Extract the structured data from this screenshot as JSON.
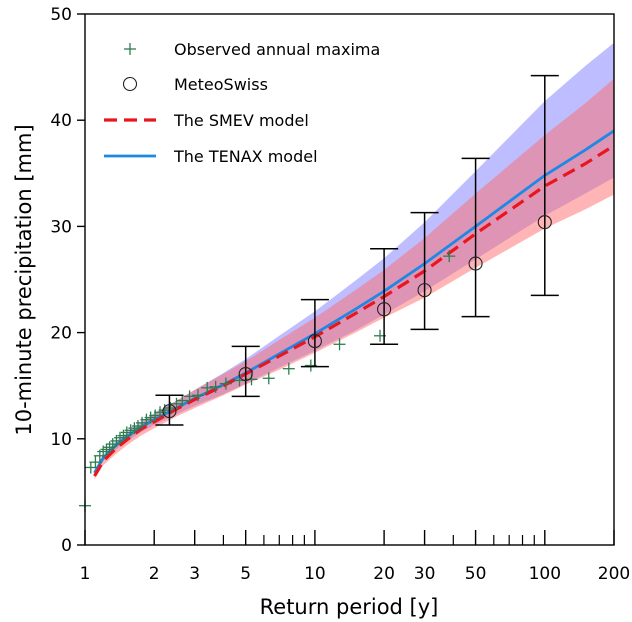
{
  "chart_data": {
    "type": "line",
    "xlabel": "Return period [y]",
    "ylabel": "10-minute precipitation [mm]",
    "xscale": "log",
    "xlim": [
      1,
      200
    ],
    "ylim": [
      0,
      50
    ],
    "grid": false,
    "legend_placement": "top-left",
    "x_ticks": [
      1,
      2,
      3,
      5,
      10,
      20,
      30,
      50,
      100,
      200
    ],
    "y_ticks": [
      0,
      10,
      20,
      30,
      40,
      50
    ],
    "legend": [
      {
        "label": "Observed annual maxima",
        "marker": "plus",
        "color": "#2e7d4f"
      },
      {
        "label": "MeteoSwiss",
        "marker": "circle",
        "color": "#222222"
      },
      {
        "label": "The SMEV model",
        "marker": "dashed-line",
        "color": "#e8161e"
      },
      {
        "label": "The TENAX model",
        "marker": "solid-line",
        "color": "#1e88e5"
      }
    ],
    "series": [
      {
        "name": "Observed annual maxima",
        "style": "plus",
        "color": "#2e7d4f",
        "x": [
          1.0,
          1.06,
          1.11,
          1.16,
          1.2,
          1.24,
          1.28,
          1.32,
          1.37,
          1.42,
          1.47,
          1.52,
          1.58,
          1.64,
          1.7,
          1.77,
          1.85,
          1.93,
          2.02,
          2.12,
          2.22,
          2.35,
          2.5,
          2.65,
          2.85,
          3.1,
          3.4,
          3.7,
          4.1,
          4.7,
          5.3,
          6.3,
          7.7,
          9.6,
          12.8,
          19.2,
          38.4
        ],
        "y": [
          3.7,
          7.3,
          7.8,
          8.4,
          8.8,
          9.0,
          9.2,
          9.5,
          9.8,
          10.1,
          10.3,
          10.6,
          10.8,
          11.0,
          11.2,
          11.5,
          11.8,
          12.0,
          12.2,
          12.5,
          12.7,
          12.9,
          13.3,
          13.6,
          14.0,
          14.1,
          14.8,
          14.9,
          15.2,
          15.5,
          15.6,
          15.7,
          16.6,
          16.9,
          18.9,
          19.7,
          27.2
        ]
      },
      {
        "name": "MeteoSwiss",
        "style": "circle",
        "color": "#222222",
        "x": [
          2.33,
          5,
          10,
          20,
          30,
          50,
          100
        ],
        "y": [
          12.6,
          16.1,
          19.2,
          22.2,
          24.0,
          26.5,
          30.4
        ],
        "y_low": [
          11.3,
          14.0,
          16.8,
          18.9,
          20.3,
          21.5,
          23.5
        ],
        "y_high": [
          14.1,
          18.7,
          23.1,
          27.9,
          31.3,
          36.4,
          44.2
        ]
      },
      {
        "name": "The SMEV model",
        "style": "dashed",
        "color": "#e8161e",
        "x": [
          1.1,
          1.2,
          1.35,
          1.5,
          1.75,
          2,
          2.5,
          3,
          4,
          5,
          7,
          10,
          15,
          20,
          30,
          50,
          100,
          150,
          200
        ],
        "y": [
          6.5,
          7.9,
          9.0,
          9.8,
          10.9,
          11.6,
          12.8,
          13.7,
          15.0,
          16.1,
          17.8,
          19.6,
          21.8,
          23.4,
          25.8,
          29.3,
          33.8,
          35.9,
          37.6
        ],
        "band_low": [
          6.2,
          7.5,
          8.5,
          9.3,
          10.3,
          11.0,
          12.1,
          12.9,
          14.1,
          15.1,
          16.5,
          18.1,
          20.0,
          21.4,
          23.3,
          26.1,
          29.8,
          31.6,
          33.0
        ],
        "band_high": [
          6.8,
          8.2,
          9.4,
          10.3,
          11.4,
          12.3,
          13.6,
          14.6,
          16.1,
          17.3,
          19.3,
          21.4,
          24.0,
          25.9,
          28.9,
          33.1,
          38.6,
          41.6,
          43.9
        ],
        "band_color": "#ff6b6b"
      },
      {
        "name": "The TENAX model",
        "style": "solid",
        "color": "#1e88e5",
        "x": [
          1.1,
          1.2,
          1.35,
          1.5,
          1.75,
          2,
          2.5,
          3,
          4,
          5,
          7,
          10,
          15,
          20,
          30,
          50,
          100,
          150,
          200
        ],
        "y": [
          6.8,
          8.2,
          9.3,
          10.1,
          11.1,
          11.8,
          12.9,
          13.8,
          15.1,
          16.2,
          18.0,
          19.9,
          22.2,
          23.9,
          26.5,
          30.0,
          34.8,
          37.2,
          39.0
        ],
        "band_low": [
          6.5,
          7.9,
          8.9,
          9.7,
          10.6,
          11.3,
          12.3,
          13.1,
          14.2,
          15.2,
          16.7,
          18.3,
          20.2,
          21.7,
          23.9,
          26.9,
          31.0,
          33.1,
          34.6
        ],
        "band_high": [
          7.1,
          8.5,
          9.7,
          10.5,
          11.6,
          12.4,
          13.6,
          14.6,
          16.2,
          17.5,
          19.7,
          22.0,
          24.9,
          27.0,
          30.4,
          35.2,
          41.8,
          45.1,
          47.3
        ],
        "band_color": "#7b7bff"
      }
    ]
  }
}
